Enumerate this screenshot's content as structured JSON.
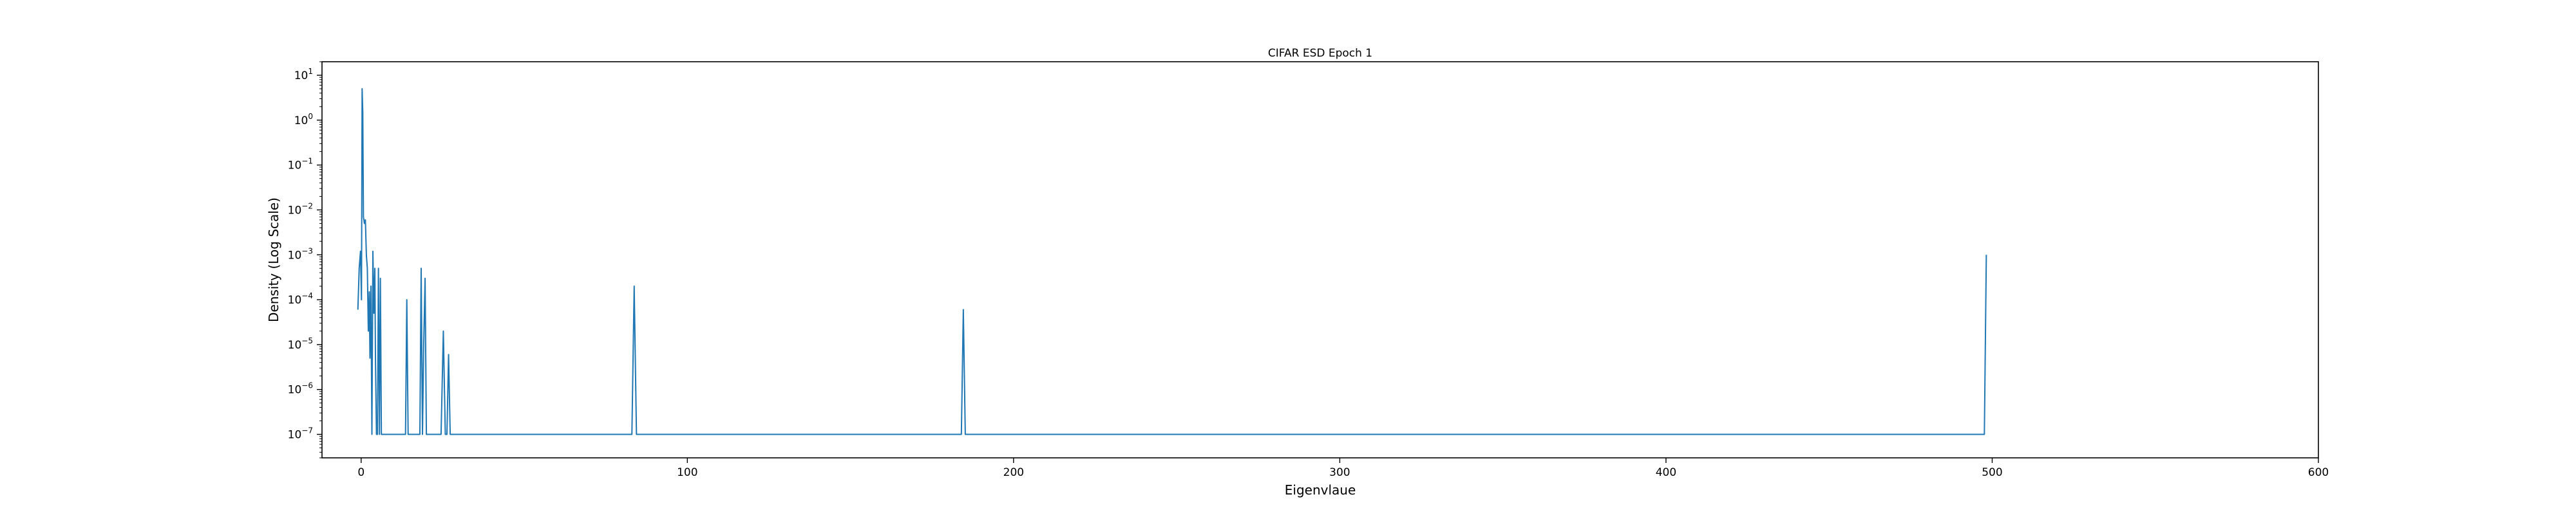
{
  "chart_data": {
    "type": "line",
    "title": "CIFAR ESD Epoch 1",
    "xlabel": "Eigenvlaue",
    "ylabel": "Density (Log Scale)",
    "xlim": [
      -12,
      600
    ],
    "ylim": [
      3e-08,
      20
    ],
    "yscale": "log",
    "grid": false,
    "line_color": "#1f77b4",
    "x_ticks": [
      0,
      100,
      200,
      300,
      400,
      500,
      600
    ],
    "x_tick_labels": [
      "0",
      "100",
      "200",
      "300",
      "400",
      "500",
      "600"
    ],
    "y_ticks": [
      1e-07,
      1e-06,
      1e-05,
      0.0001,
      0.001,
      0.01,
      0.1,
      1,
      10
    ],
    "y_tick_labels": [
      {
        "base": "10",
        "exp": "−7"
      },
      {
        "base": "10",
        "exp": "−6"
      },
      {
        "base": "10",
        "exp": "−5"
      },
      {
        "base": "10",
        "exp": "−4"
      },
      {
        "base": "10",
        "exp": "−3"
      },
      {
        "base": "10",
        "exp": "−2"
      },
      {
        "base": "10",
        "exp": "−1"
      },
      {
        "base": "10",
        "exp": "0"
      },
      {
        "base": "10",
        "exp": "1"
      }
    ],
    "series": [
      {
        "x": [
          -1.0,
          -0.6,
          -0.2,
          0.1,
          0.3,
          0.5,
          0.7,
          1.0,
          1.3,
          1.6,
          1.9,
          2.2,
          2.5,
          2.7,
          3.0,
          3.3,
          3.6,
          3.9,
          4.2,
          4.4,
          4.7,
          5.0,
          5.3,
          5.6,
          5.9,
          6.2,
          6.6,
          7.0,
          7.4,
          7.8,
          8.2,
          8.6,
          9.0,
          12.0,
          13.6,
          14.0,
          14.4,
          17.0,
          18.0,
          18.4,
          18.8,
          19.2,
          19.6,
          20.0,
          20.4,
          24.5,
          25.2,
          25.8,
          26.3,
          26.8,
          27.3,
          83.0,
          83.7,
          84.4,
          184.0,
          184.6,
          185.2,
          497.0,
          497.6,
          498.2
        ],
        "y": [
          6e-05,
          0.0005,
          0.0012,
          0.0001,
          5.0,
          1.5,
          0.007,
          0.005,
          0.006,
          0.001,
          0.0005,
          2e-05,
          0.00015,
          5e-06,
          0.0002,
          1e-07,
          0.0012,
          5e-05,
          0.0005,
          4e-06,
          1e-07,
          1e-07,
          0.0005,
          1e-07,
          0.0003,
          1e-07,
          1e-07,
          1e-07,
          1e-07,
          1e-07,
          1e-07,
          1e-07,
          1e-07,
          1e-07,
          1e-07,
          0.0001,
          1e-07,
          1e-07,
          1e-07,
          0.0005,
          1e-07,
          1.2e-05,
          0.0003,
          1e-07,
          1e-07,
          1e-07,
          2e-05,
          1e-07,
          1e-07,
          6e-06,
          1e-07,
          1e-07,
          0.0002,
          1e-07,
          1e-07,
          6e-05,
          1e-07,
          1e-07,
          1e-07,
          0.001
        ]
      }
    ]
  }
}
